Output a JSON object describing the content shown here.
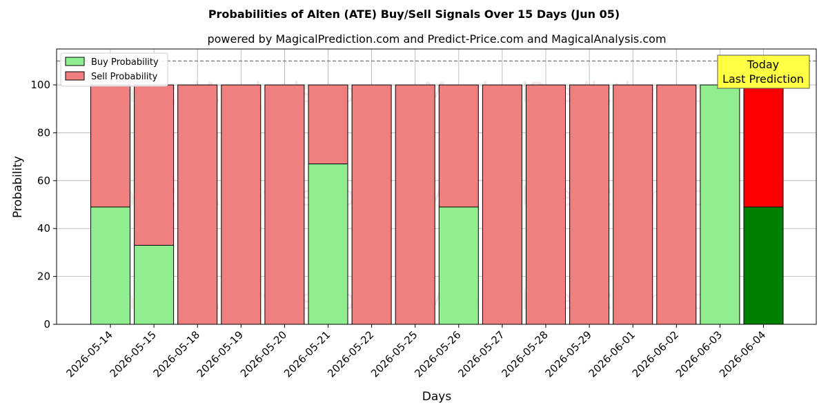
{
  "chart_data": {
    "type": "bar",
    "stacked": true,
    "title": "Probabilities of Alten (ATE) Buy/Sell Signals Over 15 Days (Jun 05)",
    "subtitle": "powered by MagicalPrediction.com and Predict-Price.com and MagicalAnalysis.com",
    "xlabel": "Days",
    "ylabel": "Probability",
    "ylim": [
      0,
      115
    ],
    "yticks": [
      0,
      20,
      40,
      60,
      80,
      100
    ],
    "grid": true,
    "legend_position": "top-left",
    "reference_line": 110,
    "categories": [
      "2026-05-14",
      "2026-05-15",
      "2026-05-18",
      "2026-05-19",
      "2026-05-20",
      "2026-05-21",
      "2026-05-22",
      "2026-05-25",
      "2026-05-26",
      "2026-05-27",
      "2026-05-28",
      "2026-05-29",
      "2026-06-01",
      "2026-06-02",
      "2026-06-03",
      "2026-06-04"
    ],
    "series": [
      {
        "name": "Buy Probability",
        "color": "#90ee90",
        "values": [
          49,
          33,
          0,
          0,
          0,
          67,
          0,
          0,
          49,
          0,
          0,
          0,
          0,
          0,
          100,
          49
        ]
      },
      {
        "name": "Sell Probability",
        "color": "#f08080",
        "values": [
          51,
          67,
          100,
          100,
          100,
          33,
          100,
          100,
          51,
          100,
          100,
          100,
          100,
          100,
          0,
          51
        ]
      }
    ],
    "highlight": {
      "index": 15,
      "buy_color": "#008000",
      "sell_color": "#ff0000"
    },
    "annotation": {
      "line1": "Today",
      "line2": "Last Prediction"
    },
    "watermarks": [
      "MagicalAnalysis.com",
      "MagicalPrediction.com"
    ]
  }
}
